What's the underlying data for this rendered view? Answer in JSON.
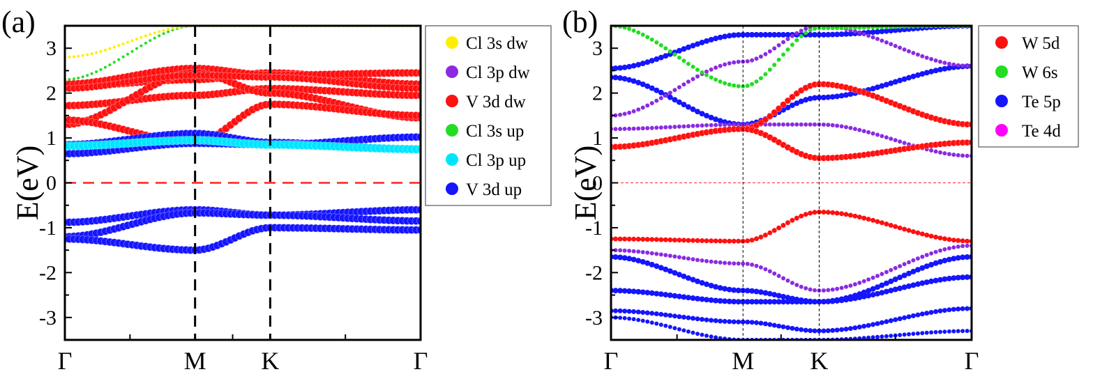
{
  "chart_data": [
    {
      "type": "scatter",
      "panel_label": "(a)",
      "ylabel": "E(eV)",
      "ylim": [
        -3.5,
        3.5
      ],
      "yticks": [
        -3,
        -2,
        -1,
        0,
        1,
        2,
        3
      ],
      "ytick_labels": [
        "-3",
        "-2",
        "-1",
        "0",
        "1",
        "2",
        "3"
      ],
      "kpoints": [
        {
          "label": "Γ",
          "pos": 0
        },
        {
          "label": "M",
          "pos": 1
        },
        {
          "label": "K",
          "pos": 2
        },
        {
          "label": "Γ",
          "pos": 3
        }
      ],
      "path_lengths": [
        1.0,
        0.577,
        1.155
      ],
      "fermi_level": 0,
      "legend": [
        {
          "label": "Cl 3s dw",
          "color": "#ffee00"
        },
        {
          "label": "Cl 3p dw",
          "color": "#8a2be2"
        },
        {
          "label": "V 3d dw",
          "color": "#ff1010"
        },
        {
          "label": "Cl 3s up",
          "color": "#22dd22"
        },
        {
          "label": "Cl 3p up",
          "color": "#00e5ff"
        },
        {
          "label": "V 3d up",
          "color": "#1515ff"
        }
      ],
      "bands": [
        {
          "color": "#ff1010",
          "size": 5.5,
          "energies": [
            1.72,
            1.95,
            2.1,
            1.95,
            1.72
          ]
        },
        {
          "color": "#ff1010",
          "size": 5.5,
          "energies": [
            2.15,
            2.3,
            2.45,
            2.2,
            2.2
          ]
        },
        {
          "color": "#ff1010",
          "size": 5.5,
          "energies": [
            2.2,
            2.55,
            2.4,
            2.45,
            2.2
          ]
        },
        {
          "color": "#ff1010",
          "size": 5.5,
          "energies": [
            1.3,
            2.45,
            2.0,
            1.45,
            1.35
          ]
        },
        {
          "color": "#ff1010",
          "size": 5.5,
          "energies": [
            1.4,
            0.9,
            1.75,
            1.5,
            1.4
          ]
        },
        {
          "color": "#ff1010",
          "size": 5.0,
          "energies": [
            2.1,
            2.4,
            2.35,
            2.1,
            2.1
          ]
        },
        {
          "color": "#1515ff",
          "size": 5.5,
          "energies": [
            0.85,
            1.1,
            0.9,
            0.75,
            0.85
          ]
        },
        {
          "color": "#1515ff",
          "size": 5.5,
          "energies": [
            0.65,
            0.88,
            0.85,
            1.02,
            0.7
          ]
        },
        {
          "color": "#1515ff",
          "size": 5.5,
          "energies": [
            -0.88,
            -0.6,
            -0.72,
            -0.6,
            -0.88
          ]
        },
        {
          "color": "#1515ff",
          "size": 5.5,
          "energies": [
            -1.2,
            -0.67,
            -0.72,
            -0.85,
            -1.2
          ]
        },
        {
          "color": "#1515ff",
          "size": 5.5,
          "energies": [
            -1.25,
            -1.5,
            -1.0,
            -1.05,
            -1.25
          ]
        },
        {
          "color": "#00e5ff",
          "size": 6.0,
          "energies": [
            0.82,
            0.95,
            0.85,
            0.75,
            0.82
          ]
        },
        {
          "color": "#22dd22",
          "size": 2.0,
          "energies": [
            2.3,
            3.5,
            3.5,
            3.5,
            2.3
          ]
        },
        {
          "color": "#ffee00",
          "size": 2.0,
          "energies": [
            2.8,
            3.5,
            3.5,
            3.5,
            2.8
          ]
        }
      ]
    },
    {
      "type": "scatter",
      "panel_label": "(b)",
      "ylabel": "E(eV)",
      "ylim": [
        -3.5,
        3.5
      ],
      "yticks": [
        -3,
        -2,
        -1,
        0,
        1,
        2,
        3
      ],
      "ytick_labels": [
        "-3",
        "-2",
        "-1",
        "0",
        "1",
        "2",
        "3"
      ],
      "kpoints": [
        {
          "label": "Γ",
          "pos": 0
        },
        {
          "label": "M",
          "pos": 1
        },
        {
          "label": "K",
          "pos": 2
        },
        {
          "label": "Γ",
          "pos": 3
        }
      ],
      "path_lengths": [
        1.0,
        0.577,
        1.155
      ],
      "fermi_level": 0,
      "legend": [
        {
          "label": "W 5d",
          "color": "#ff1010"
        },
        {
          "label": "W 6s",
          "color": "#22dd22"
        },
        {
          "label": "Te 5p",
          "color": "#1515ff"
        },
        {
          "label": "Te 4d",
          "color": "#ff00ff"
        }
      ],
      "bands": [
        {
          "color": "#1515ff",
          "size": 4.0,
          "energies": [
            2.55,
            3.3,
            3.3,
            3.5,
            2.55
          ]
        },
        {
          "color": "#1515ff",
          "size": 4.0,
          "energies": [
            2.35,
            1.3,
            1.9,
            2.6,
            2.35
          ]
        },
        {
          "color": "#8a2be2",
          "size": 3.0,
          "energies": [
            1.5,
            2.7,
            3.5,
            2.6,
            1.5
          ]
        },
        {
          "color": "#8a2be2",
          "size": 3.0,
          "energies": [
            1.2,
            1.3,
            1.3,
            0.6,
            1.2
          ]
        },
        {
          "color": "#ff1010",
          "size": 4.5,
          "energies": [
            0.8,
            1.2,
            2.2,
            1.3,
            1.3
          ]
        },
        {
          "color": "#ff1010",
          "size": 4.5,
          "energies": [
            0.8,
            1.2,
            0.55,
            0.9,
            1.3
          ]
        },
        {
          "color": "#22dd22",
          "size": 3.0,
          "energies": [
            3.5,
            2.15,
            3.45,
            3.5,
            3.5
          ]
        },
        {
          "color": "#ff1010",
          "size": 3.5,
          "energies": [
            -1.25,
            -1.3,
            -0.65,
            -1.3,
            -1.25
          ]
        },
        {
          "color": "#8a2be2",
          "size": 3.0,
          "energies": [
            -1.5,
            -1.8,
            -2.4,
            -1.4,
            -1.5
          ]
        },
        {
          "color": "#1515ff",
          "size": 4.0,
          "energies": [
            -1.65,
            -2.4,
            -2.65,
            -1.65,
            -1.65
          ]
        },
        {
          "color": "#1515ff",
          "size": 4.0,
          "energies": [
            -2.4,
            -2.65,
            -2.65,
            -2.1,
            -2.4
          ]
        },
        {
          "color": "#1515ff",
          "size": 3.5,
          "energies": [
            -2.85,
            -3.1,
            -3.3,
            -2.8,
            -2.85
          ]
        },
        {
          "color": "#1515ff",
          "size": 3.0,
          "energies": [
            -3.0,
            -3.5,
            -3.5,
            -3.3,
            -3.0
          ]
        }
      ]
    }
  ]
}
